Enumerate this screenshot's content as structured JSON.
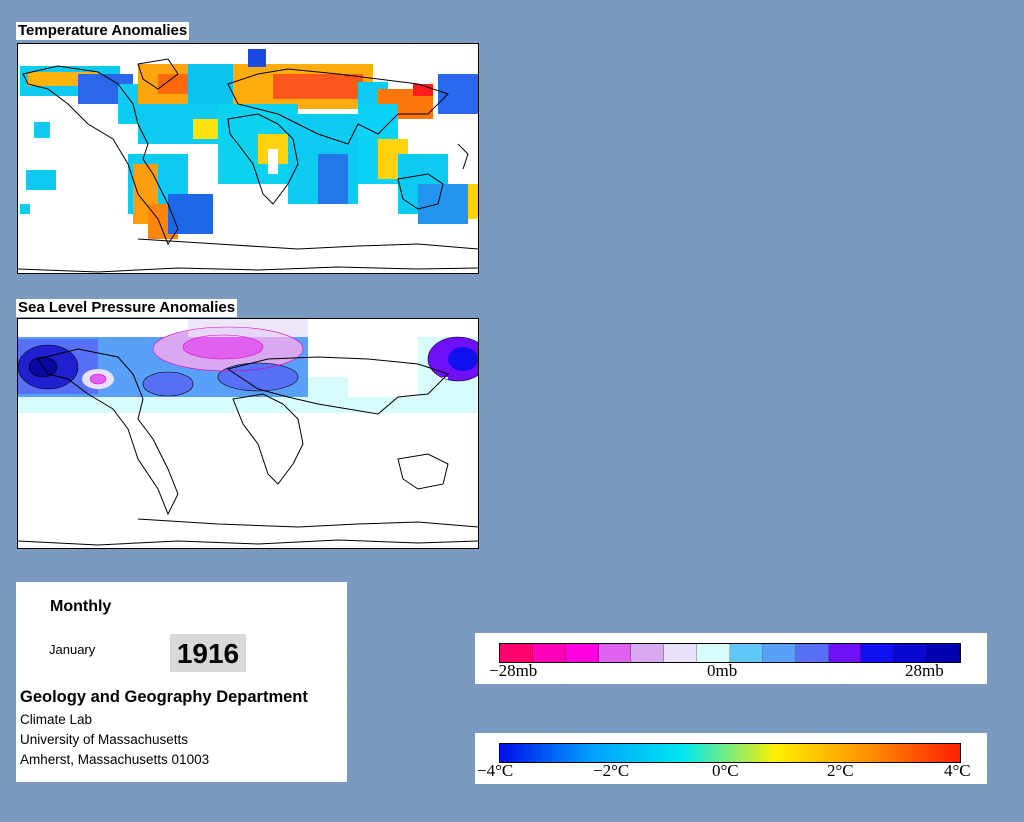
{
  "temperature_panel": {
    "title": "Temperature Anomalies"
  },
  "pressure_panel": {
    "title": "Sea Level Pressure Anomalies"
  },
  "info": {
    "period": "Monthly",
    "month": "January",
    "year": "1916",
    "department": "Geology and Geography Department",
    "lab": "Climate Lab",
    "university": "University of Massachusetts",
    "address": "Amherst, Massachusetts 01003"
  },
  "pressure_legend": {
    "ticks": [
      "−28mb",
      "0mb",
      "28mb"
    ],
    "colors": [
      "#ff0070",
      "#ff00b8",
      "#ff00e0",
      "#e060f0",
      "#d8a8f0",
      "#e8e0f8",
      "#d8fcfc",
      "#60c8f8",
      "#58a0f8",
      "#5870f8",
      "#7010f8",
      "#1010f0",
      "#0808d0",
      "#0000b0"
    ]
  },
  "temperature_legend": {
    "ticks": [
      "−4°C",
      "−2°C",
      "0°C",
      "2°C",
      "4°C"
    ],
    "colors": [
      "#0010e8",
      "#00a0ff",
      "#00e8f0",
      "#fff000",
      "#ff9000",
      "#ff2000"
    ]
  }
}
